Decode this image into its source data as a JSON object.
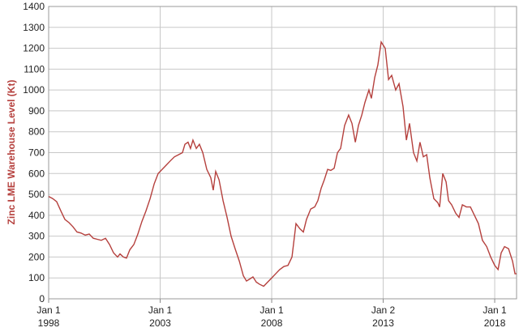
{
  "chart_data": {
    "type": "line",
    "y_label": "Zinc LME Warehouse Level (Kt)",
    "color": "#b5403d",
    "grid": true,
    "xlim": [
      1998,
      2018.98
    ],
    "ylim": [
      0,
      1400
    ],
    "xticks": [
      {
        "value": 1998,
        "label": "Jan 1\n1998"
      },
      {
        "value": 2003,
        "label": "Jan 1\n2003"
      },
      {
        "value": 2008,
        "label": "Jan 1\n2008"
      },
      {
        "value": 2013,
        "label": "Jan 2\n2013"
      },
      {
        "value": 2018,
        "label": "Jan 1\n2018"
      }
    ],
    "yticks": [
      0,
      100,
      200,
      300,
      400,
      500,
      600,
      700,
      800,
      900,
      1000,
      1100,
      1200,
      1300,
      1400
    ],
    "x": [
      1998.0,
      1998.18,
      1998.36,
      1998.55,
      1998.73,
      1998.91,
      1999.09,
      1999.27,
      1999.45,
      1999.64,
      1999.82,
      2000.0,
      2000.18,
      2000.36,
      2000.55,
      2000.73,
      2000.91,
      2001.09,
      2001.2,
      2001.35,
      2001.49,
      2001.64,
      2001.82,
      2002.0,
      2002.18,
      2002.36,
      2002.55,
      2002.73,
      2002.91,
      2003.09,
      2003.27,
      2003.45,
      2003.64,
      2003.82,
      2004.0,
      2004.11,
      2004.25,
      2004.36,
      2004.47,
      2004.62,
      2004.76,
      2004.91,
      2005.09,
      2005.27,
      2005.38,
      2005.49,
      2005.64,
      2005.82,
      2006.0,
      2006.18,
      2006.36,
      2006.55,
      2006.73,
      2006.87,
      2007.02,
      2007.16,
      2007.31,
      2007.45,
      2007.64,
      2007.82,
      2008.0,
      2008.18,
      2008.36,
      2008.55,
      2008.73,
      2008.91,
      2009.09,
      2009.27,
      2009.42,
      2009.56,
      2009.75,
      2009.93,
      2010.07,
      2010.22,
      2010.36,
      2010.51,
      2010.65,
      2010.8,
      2010.95,
      2011.09,
      2011.27,
      2011.45,
      2011.6,
      2011.75,
      2011.89,
      2012.04,
      2012.18,
      2012.36,
      2012.47,
      2012.62,
      2012.76,
      2012.91,
      2013.09,
      2013.24,
      2013.38,
      2013.56,
      2013.71,
      2013.89,
      2014.04,
      2014.18,
      2014.36,
      2014.51,
      2014.65,
      2014.8,
      2014.95,
      2015.09,
      2015.27,
      2015.45,
      2015.53,
      2015.67,
      2015.82,
      2015.93,
      2016.07,
      2016.25,
      2016.4,
      2016.55,
      2016.73,
      2016.91,
      2017.09,
      2017.27,
      2017.45,
      2017.64,
      2017.82,
      2018.0,
      2018.15,
      2018.29,
      2018.44,
      2018.62,
      2018.8,
      2018.91,
      2018.98
    ],
    "values": [
      490,
      480,
      465,
      420,
      380,
      365,
      345,
      320,
      315,
      305,
      310,
      290,
      285,
      280,
      290,
      260,
      220,
      200,
      215,
      200,
      195,
      235,
      260,
      310,
      370,
      420,
      480,
      550,
      600,
      620,
      640,
      660,
      680,
      690,
      700,
      740,
      750,
      720,
      760,
      720,
      740,
      700,
      620,
      580,
      520,
      610,
      570,
      470,
      390,
      300,
      240,
      180,
      110,
      85,
      95,
      105,
      80,
      70,
      60,
      80,
      100,
      120,
      140,
      155,
      160,
      200,
      360,
      335,
      320,
      380,
      430,
      440,
      470,
      530,
      570,
      620,
      615,
      625,
      700,
      720,
      830,
      880,
      840,
      750,
      830,
      880,
      940,
      1000,
      960,
      1060,
      1120,
      1230,
      1200,
      1050,
      1070,
      1000,
      1030,
      920,
      760,
      840,
      700,
      660,
      750,
      680,
      690,
      580,
      480,
      460,
      440,
      600,
      560,
      470,
      450,
      410,
      390,
      450,
      440,
      440,
      400,
      360,
      280,
      250,
      200,
      160,
      140,
      220,
      250,
      240,
      180,
      120,
      120
    ]
  }
}
